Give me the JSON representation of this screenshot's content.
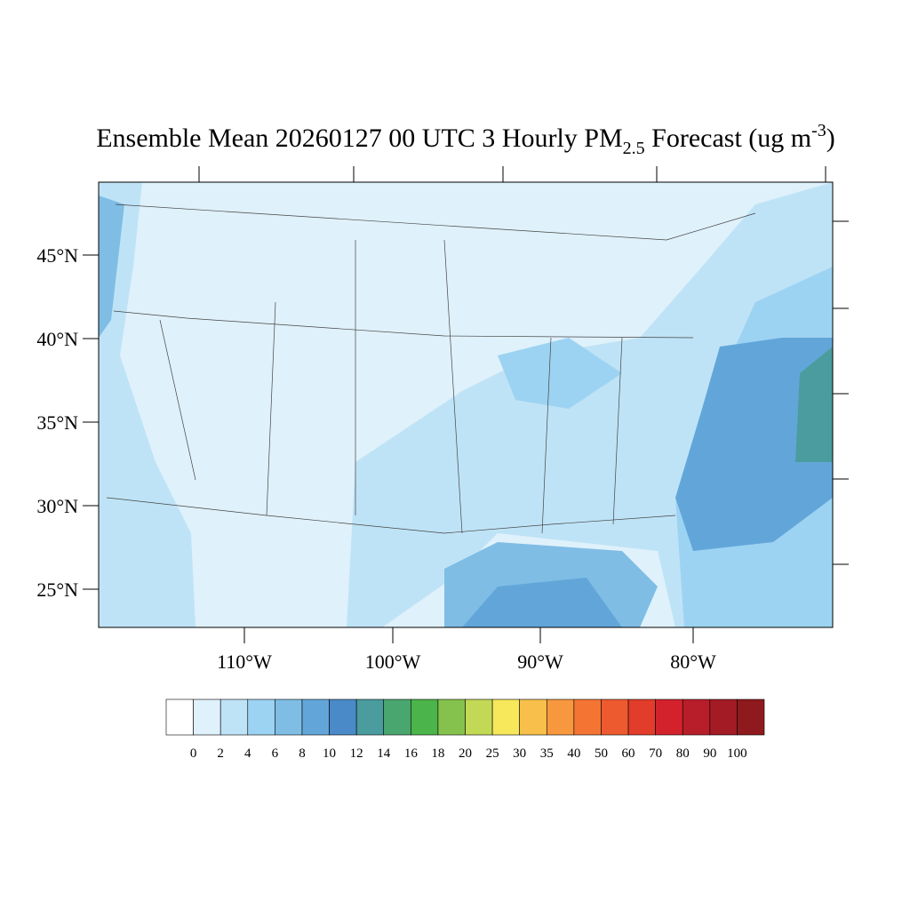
{
  "header": {
    "title": "Ensemble Mean 20260127 00 UTC 3 Hourly PM",
    "title_sub": "2.5",
    "title_rest": " Forecast (ug m",
    "title_sup": "-3",
    "title_end": ")"
  },
  "map": {
    "lat_labels": [
      {
        "value": 45,
        "label": "45°N"
      },
      {
        "value": 40,
        "label": "40°N"
      },
      {
        "value": 35,
        "label": "35°N"
      },
      {
        "value": 30,
        "label": "30°N"
      },
      {
        "value": 25,
        "label": "25°N"
      }
    ],
    "lon_labels": [
      {
        "value": -110,
        "label": "110°W"
      },
      {
        "value": -100,
        "label": "100°W"
      },
      {
        "value": -90,
        "label": "90°W"
      },
      {
        "value": -80,
        "label": "80°W"
      }
    ]
  },
  "colorbar": {
    "levels": [
      0,
      2,
      4,
      6,
      8,
      10,
      12,
      14,
      16,
      18,
      20,
      25,
      30,
      35,
      40,
      50,
      60,
      70,
      80,
      90,
      100
    ],
    "colors": [
      "#ffffff",
      "#dff1fb",
      "#bfe3f6",
      "#9dd3f2",
      "#7fbde5",
      "#62a6d9",
      "#4a8ac8",
      "#4a9c9e",
      "#4aa66f",
      "#4bb44a",
      "#85c24d",
      "#c2d956",
      "#f6e85a",
      "#f8c04a",
      "#f7983f",
      "#f47433",
      "#ee5a2f",
      "#e23c2a",
      "#d4222d",
      "#b81e2a",
      "#a21b25",
      "#8e1a1e"
    ]
  }
}
